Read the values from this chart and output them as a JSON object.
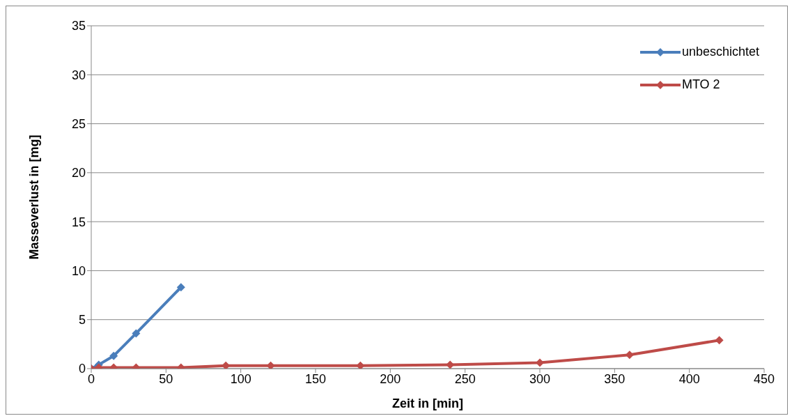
{
  "chart_data": {
    "type": "line",
    "xlabel": "Zeit in [min]",
    "ylabel": "Masseverlust in [mg]",
    "xlim": [
      0,
      450
    ],
    "xticks": [
      0,
      50,
      100,
      150,
      200,
      250,
      300,
      350,
      400,
      450
    ],
    "ylim": [
      0,
      35
    ],
    "yticks": [
      0,
      5,
      10,
      15,
      20,
      25,
      30,
      35
    ],
    "grid": "y",
    "legend": "top right",
    "marker": "diamond",
    "line_style": "solid",
    "series": [
      {
        "name": "unbeschichtet",
        "color": "#4a7ebb",
        "x": [
          0,
          5,
          15,
          30,
          60
        ],
        "values": [
          0,
          0.4,
          1.3,
          3.6,
          8.3
        ]
      },
      {
        "name": "MTO 2",
        "color": "#be4b48",
        "x": [
          0,
          5,
          15,
          30,
          60,
          90,
          120,
          180,
          240,
          300,
          360,
          420
        ],
        "values": [
          0,
          0.1,
          0.1,
          0.1,
          0.1,
          0.3,
          0.3,
          0.3,
          0.4,
          0.6,
          1.4,
          2.9
        ]
      }
    ]
  }
}
